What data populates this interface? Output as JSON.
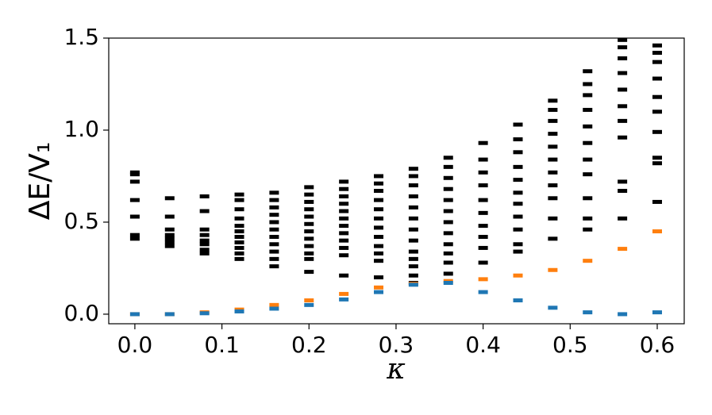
{
  "chart_data": {
    "type": "scatter",
    "x_label": "κ",
    "y_label": "ΔE/V₁",
    "xlim": [
      -0.03,
      0.631
    ],
    "ylim": [
      -0.052,
      1.5
    ],
    "xticks": [
      {
        "value": 0,
        "label": "0.0"
      },
      0.1,
      0.2,
      0.3,
      0.4,
      0.5,
      0.6
    ],
    "yticks": [
      {
        "value": 0,
        "label": "0.0"
      },
      0.5,
      {
        "value": 1,
        "label": "1.0"
      },
      1.5
    ],
    "series": [
      {
        "color": "#000000",
        "x": [
          0,
          0,
          0,
          0,
          0,
          0,
          0,
          0.04,
          0.04,
          0.04,
          0.04,
          0.04,
          0.04,
          0.04,
          0.08,
          0.08,
          0.08,
          0.08,
          0.08,
          0.08,
          0.08,
          0.08,
          0.12,
          0.12,
          0.12,
          0.12,
          0.12,
          0.12,
          0.12,
          0.12,
          0.12,
          0.12,
          0.12,
          0.16,
          0.16,
          0.16,
          0.16,
          0.16,
          0.16,
          0.16,
          0.16,
          0.16,
          0.16,
          0.16,
          0.2,
          0.2,
          0.2,
          0.2,
          0.2,
          0.2,
          0.2,
          0.2,
          0.2,
          0.2,
          0.2,
          0.2,
          0.24,
          0.24,
          0.24,
          0.24,
          0.24,
          0.24,
          0.24,
          0.24,
          0.24,
          0.24,
          0.24,
          0.24,
          0.28,
          0.28,
          0.28,
          0.28,
          0.28,
          0.28,
          0.28,
          0.28,
          0.28,
          0.28,
          0.28,
          0.28,
          0.32,
          0.32,
          0.32,
          0.32,
          0.32,
          0.32,
          0.32,
          0.32,
          0.32,
          0.32,
          0.32,
          0.32,
          0.32,
          0.36,
          0.36,
          0.36,
          0.36,
          0.36,
          0.36,
          0.36,
          0.36,
          0.36,
          0.36,
          0.36,
          0.36,
          0.4,
          0.4,
          0.4,
          0.4,
          0.4,
          0.4,
          0.4,
          0.4,
          0.4,
          0.4,
          0.44,
          0.44,
          0.44,
          0.44,
          0.44,
          0.44,
          0.44,
          0.44,
          0.44,
          0.44,
          0.44,
          0.48,
          0.48,
          0.48,
          0.48,
          0.48,
          0.48,
          0.48,
          0.48,
          0.48,
          0.48,
          0.48,
          0.52,
          0.52,
          0.52,
          0.52,
          0.52,
          0.52,
          0.52,
          0.52,
          0.52,
          0.52,
          0.52,
          0.56,
          0.56,
          0.56,
          0.56,
          0.56,
          0.56,
          0.56,
          0.56,
          0.56,
          0.56,
          0.56,
          0.6,
          0.6,
          0.6,
          0.6,
          0.6,
          0.6,
          0.6,
          0.6,
          0.6,
          0.6
        ],
        "values": [
          0.41,
          0.43,
          0.53,
          0.62,
          0.72,
          0.76,
          0.77,
          0.37,
          0.39,
          0.41,
          0.43,
          0.46,
          0.53,
          0.63,
          0.33,
          0.35,
          0.38,
          0.4,
          0.43,
          0.46,
          0.56,
          0.64,
          0.3,
          0.33,
          0.36,
          0.39,
          0.42,
          0.45,
          0.48,
          0.52,
          0.57,
          0.62,
          0.65,
          0.26,
          0.3,
          0.34,
          0.38,
          0.42,
          0.46,
          0.5,
          0.54,
          0.58,
          0.62,
          0.66,
          0.23,
          0.3,
          0.33,
          0.37,
          0.41,
          0.45,
          0.49,
          0.53,
          0.57,
          0.61,
          0.65,
          0.69,
          0.21,
          0.32,
          0.36,
          0.4,
          0.44,
          0.48,
          0.52,
          0.56,
          0.6,
          0.64,
          0.68,
          0.72,
          0.2,
          0.29,
          0.33,
          0.37,
          0.42,
          0.47,
          0.52,
          0.57,
          0.62,
          0.67,
          0.71,
          0.75,
          0.17,
          0.21,
          0.26,
          0.3,
          0.34,
          0.4,
          0.46,
          0.52,
          0.58,
          0.64,
          0.7,
          0.75,
          0.79,
          0.22,
          0.28,
          0.33,
          0.38,
          0.44,
          0.5,
          0.56,
          0.62,
          0.68,
          0.74,
          0.8,
          0.85,
          0.28,
          0.36,
          0.42,
          0.48,
          0.55,
          0.62,
          0.7,
          0.77,
          0.84,
          0.93,
          0.34,
          0.38,
          0.46,
          0.53,
          0.6,
          0.66,
          0.73,
          0.8,
          0.88,
          0.95,
          1.03,
          0.41,
          0.52,
          0.63,
          0.7,
          0.77,
          0.84,
          0.91,
          0.98,
          1.05,
          1.11,
          1.16,
          0.46,
          0.52,
          0.63,
          0.76,
          0.84,
          0.93,
          1.02,
          1.11,
          1.19,
          1.25,
          1.32,
          0.52,
          0.67,
          0.72,
          0.96,
          1.05,
          1.13,
          1.22,
          1.31,
          1.39,
          1.45,
          1.49,
          0.61,
          0.82,
          0.85,
          0.99,
          1.1,
          1.18,
          1.28,
          1.37,
          1.42,
          1.46
        ]
      },
      {
        "color": "#ff7f0e",
        "x": [
          0,
          0.04,
          0.08,
          0.12,
          0.16,
          0.2,
          0.24,
          0.28,
          0.32,
          0.36,
          0.4,
          0.44,
          0.48,
          0.52,
          0.56,
          0.6
        ],
        "values": [
          0.0,
          0.0,
          0.01,
          0.025,
          0.05,
          0.075,
          0.11,
          0.145,
          0.165,
          0.18,
          0.19,
          0.21,
          0.24,
          0.29,
          0.355,
          0.45
        ]
      },
      {
        "color": "#1f77b4",
        "x": [
          0,
          0.04,
          0.08,
          0.12,
          0.16,
          0.2,
          0.24,
          0.28,
          0.32,
          0.36,
          0.4,
          0.44,
          0.48,
          0.52,
          0.56,
          0.6
        ],
        "values": [
          0.0,
          0.0,
          0.005,
          0.015,
          0.03,
          0.05,
          0.08,
          0.12,
          0.16,
          0.17,
          0.12,
          0.075,
          0.035,
          0.01,
          0.0,
          0.01
        ]
      }
    ]
  }
}
